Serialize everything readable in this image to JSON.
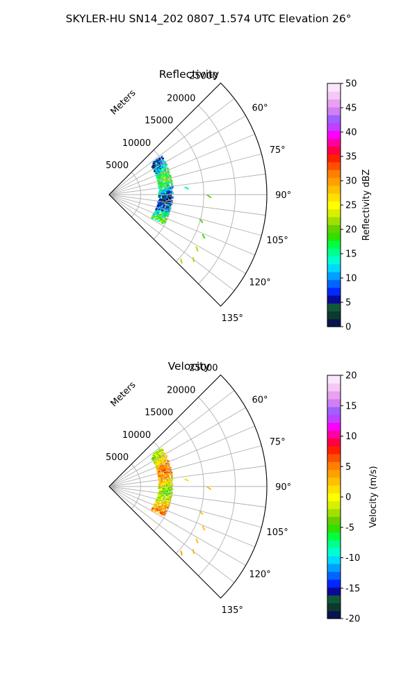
{
  "figure": {
    "title": "SKYLER-HU  SN14_202  0807_1.574 UTC Elevation 26°"
  },
  "chart_data": [
    {
      "type": "heatmap",
      "projection": "polar-sector",
      "title": "Reflectivity",
      "radial_label": "Meters",
      "radial_ticks": [
        "5000",
        "10000",
        "15000",
        "20000",
        "25000"
      ],
      "radial_tick_values": [
        5000,
        10000,
        15000,
        20000,
        25000
      ],
      "radial_max": 25000,
      "angle_range_deg": [
        45,
        135
      ],
      "angle_ticks": [
        "60°",
        "75°",
        "90°",
        "105°",
        "120°",
        "135°"
      ],
      "angle_tick_values": [
        60,
        75,
        90,
        105,
        120,
        135
      ],
      "grid": true,
      "colorbar": {
        "label": "Reflectivity dBZ",
        "min": 0,
        "max": 50,
        "ticks": [
          "0",
          "5",
          "10",
          "15",
          "20",
          "25",
          "30",
          "35",
          "40",
          "45",
          "50"
        ],
        "tick_values": [
          0,
          5,
          10,
          15,
          20,
          25,
          30,
          35,
          40,
          45,
          50
        ]
      },
      "echo_band": {
        "description_values": "main echo arc along range ~7000-10000 m spanning azimuth ~53-118 deg",
        "azimuth_range": [
          53,
          118
        ],
        "range_center_km": [
          9.2,
          8.6
        ],
        "typical_value": 12,
        "value_spread": [
          3,
          22
        ]
      },
      "scattered_gates": [
        {
          "azimuth": 90,
          "range": 15500,
          "value": 20
        },
        {
          "azimuth": 105,
          "range": 14800,
          "value": 18
        },
        {
          "azimuth": 113,
          "range": 16000,
          "value": 19
        },
        {
          "azimuth": 121,
          "range": 16000,
          "value": 21
        },
        {
          "azimuth": 127,
          "range": 16500,
          "value": 22
        },
        {
          "azimuth": 132,
          "range": 15200,
          "value": 21
        },
        {
          "azimuth": 84,
          "range": 12000,
          "value": 16
        }
      ]
    },
    {
      "type": "heatmap",
      "projection": "polar-sector",
      "title": "Velocity",
      "radial_label": "Meters",
      "radial_ticks": [
        "5000",
        "10000",
        "15000",
        "20000",
        "25000"
      ],
      "radial_tick_values": [
        5000,
        10000,
        15000,
        20000,
        25000
      ],
      "radial_max": 25000,
      "angle_range_deg": [
        45,
        135
      ],
      "angle_ticks": [
        "60°",
        "75°",
        "90°",
        "105°",
        "120°",
        "135°"
      ],
      "angle_tick_values": [
        60,
        75,
        90,
        105,
        120,
        135
      ],
      "grid": true,
      "colorbar": {
        "label": "Velocity (m/s)",
        "min": -20,
        "max": 20,
        "ticks": [
          "-20",
          "-15",
          "-10",
          "-5",
          "0",
          "5",
          "10",
          "15",
          "20"
        ],
        "tick_values": [
          -20,
          -15,
          -10,
          -5,
          0,
          5,
          10,
          15,
          20
        ]
      },
      "echo_band": {
        "azimuth_range": [
          53,
          118
        ],
        "range_center_km": [
          9.2,
          8.6
        ],
        "typical_value": 1,
        "value_spread": [
          -6,
          5
        ]
      },
      "scattered_gates": [
        {
          "azimuth": 90,
          "range": 15500,
          "value": 3
        },
        {
          "azimuth": 105,
          "range": 14800,
          "value": 2
        },
        {
          "azimuth": 113,
          "range": 16000,
          "value": 2
        },
        {
          "azimuth": 121,
          "range": 16000,
          "value": 3
        },
        {
          "azimuth": 127,
          "range": 16500,
          "value": 3
        },
        {
          "azimuth": 132,
          "range": 15200,
          "value": 4
        },
        {
          "azimuth": 84,
          "range": 12000,
          "value": 1
        }
      ]
    }
  ],
  "colormap_hex": [
    "#0a1450",
    "#0c3a2c",
    "#10583a",
    "#0a0a96",
    "#0028ff",
    "#0064ff",
    "#00a0ff",
    "#00d8ff",
    "#00ffd0",
    "#00ff90",
    "#00ff40",
    "#30e000",
    "#66d000",
    "#a0e000",
    "#d8f000",
    "#ffff00",
    "#ffe000",
    "#ffc000",
    "#ffa000",
    "#ff8000",
    "#ff5000",
    "#ff2000",
    "#ff0040",
    "#ff00a0",
    "#ff00ff",
    "#c040ff",
    "#a060ff",
    "#d080f0",
    "#e8a0f0",
    "#f4c8f4",
    "#fbe6fb"
  ]
}
